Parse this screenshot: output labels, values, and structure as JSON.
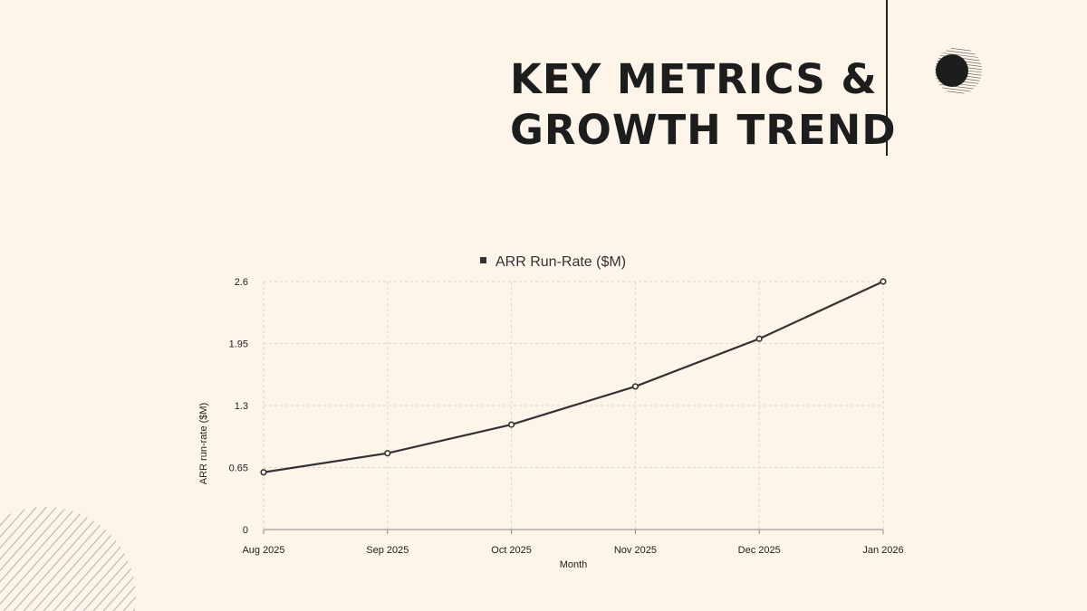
{
  "slide": {
    "title_line1": "KEY METRICS &",
    "title_line2": "GROWTH TREND"
  },
  "chart_data": {
    "type": "line",
    "categories": [
      "Aug 2025",
      "Sep 2025",
      "Oct 2025",
      "Nov 2025",
      "Dec 2025",
      "Jan 2026"
    ],
    "series": [
      {
        "name": "ARR Run-Rate ($M)",
        "values": [
          0.6,
          0.8,
          1.1,
          1.5,
          2.0,
          2.6
        ],
        "color": "#333333"
      }
    ],
    "xlabel": "Month",
    "ylabel": "ARR run-rate ($M)",
    "ylim": [
      0,
      2.6
    ],
    "yticks": [
      "0",
      "0.65",
      "1.3",
      "1.95",
      "2.6"
    ],
    "grid": true,
    "legend": "top-center"
  },
  "colors": {
    "background": "#fdf4ea",
    "ink": "#1d1d1d",
    "grid": "#dcd6cf"
  }
}
